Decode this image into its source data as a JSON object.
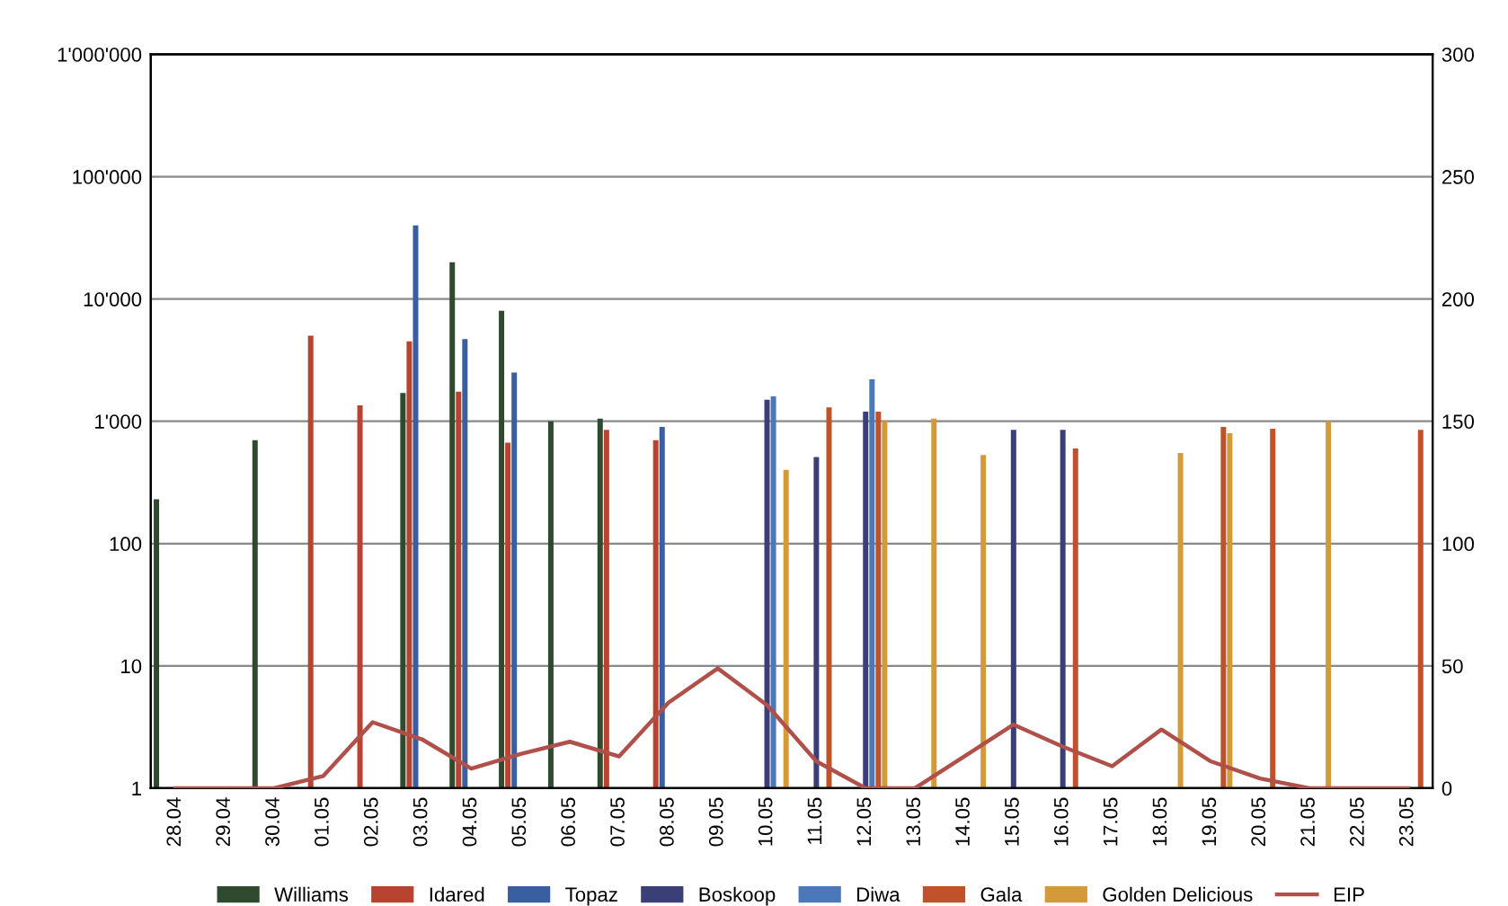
{
  "chart_data": {
    "type": "bar",
    "categories": [
      "28.04",
      "29.04",
      "30.04",
      "01.05",
      "02.05",
      "03.05",
      "04.05",
      "05.05",
      "06.05",
      "07.05",
      "08.05",
      "09.05",
      "10.05",
      "11.05",
      "12.05",
      "13.05",
      "14.05",
      "15.05",
      "16.05",
      "17.05",
      "18.05",
      "19.05",
      "20.05",
      "21.05",
      "22.05",
      "23.05"
    ],
    "series": [
      {
        "name": "Williams",
        "color": "#2f4a2f",
        "values": [
          230,
          null,
          700,
          null,
          null,
          1700,
          20000,
          8000,
          1000,
          1050,
          null,
          null,
          null,
          null,
          null,
          null,
          null,
          null,
          null,
          null,
          null,
          null,
          null,
          null,
          null,
          null
        ]
      },
      {
        "name": "Idared",
        "color": "#b8432f",
        "values": [
          null,
          null,
          null,
          5000,
          1350,
          4500,
          1750,
          670,
          null,
          850,
          700,
          null,
          null,
          null,
          null,
          null,
          null,
          null,
          null,
          null,
          null,
          null,
          null,
          null,
          null,
          null
        ]
      },
      {
        "name": "Topaz",
        "color": "#3a5fa0",
        "values": [
          null,
          null,
          null,
          null,
          null,
          40000,
          4700,
          2500,
          null,
          null,
          900,
          null,
          null,
          null,
          null,
          null,
          null,
          null,
          null,
          null,
          null,
          null,
          null,
          null,
          null,
          null
        ]
      },
      {
        "name": "Boskoop",
        "color": "#3b3f78",
        "values": [
          null,
          null,
          null,
          null,
          null,
          null,
          null,
          null,
          null,
          null,
          null,
          null,
          1500,
          510,
          1200,
          null,
          null,
          850,
          850,
          null,
          null,
          null,
          null,
          null,
          null,
          null
        ]
      },
      {
        "name": "Diwa",
        "color": "#4a78b8",
        "values": [
          null,
          null,
          null,
          null,
          null,
          null,
          null,
          null,
          null,
          null,
          null,
          null,
          1600,
          null,
          2200,
          null,
          null,
          null,
          null,
          null,
          null,
          null,
          null,
          null,
          null,
          null
        ]
      },
      {
        "name": "Gala",
        "color": "#c0522a",
        "values": [
          null,
          null,
          null,
          null,
          null,
          null,
          null,
          null,
          null,
          null,
          null,
          null,
          null,
          1300,
          1200,
          null,
          null,
          null,
          600,
          null,
          null,
          900,
          870,
          null,
          null,
          850
        ]
      },
      {
        "name": "Golden Delicious",
        "color": "#d49a3a",
        "values": [
          null,
          null,
          null,
          null,
          null,
          null,
          null,
          null,
          null,
          null,
          null,
          null,
          400,
          null,
          1000,
          1050,
          530,
          null,
          null,
          null,
          550,
          800,
          null,
          1000,
          null,
          null
        ]
      },
      {
        "name": "EIP",
        "color": "#b0504a",
        "type": "line",
        "axis": "y2",
        "values": [
          0,
          0,
          0,
          5,
          27,
          20,
          8,
          14,
          19,
          13,
          35,
          49,
          34,
          11,
          0,
          0,
          13,
          26,
          17,
          9,
          24,
          11,
          4,
          0,
          0,
          0
        ]
      }
    ],
    "log": true,
    "ylim": [
      1,
      1000000
    ],
    "yticks": [
      1,
      10,
      100,
      {
        "value": 1000,
        "label": "1'000"
      },
      {
        "value": 10000,
        "label": "10'000"
      },
      {
        "value": 100000,
        "label": "100'000"
      },
      {
        "value": 1000000,
        "label": "1'000'000"
      }
    ],
    "y2lim": [
      0,
      300
    ],
    "y2ticks": [
      0,
      50,
      100,
      150,
      200,
      250,
      300
    ],
    "grid": "y",
    "legend": "bottom",
    "marker": "none",
    "line_style": "solid"
  }
}
